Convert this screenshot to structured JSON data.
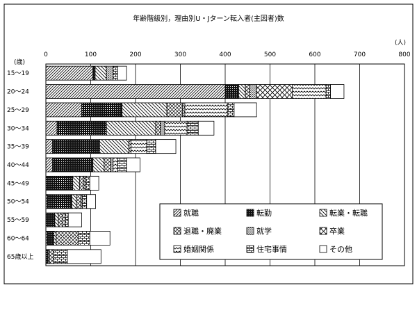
{
  "chart_data": {
    "type": "bar",
    "orientation": "horizontal",
    "stacked": true,
    "title": "年齢階級別，理由別U・Jターン転入者(主因者)数",
    "x_unit": "(人)",
    "y_unit": "(歳)",
    "xlim": [
      0,
      800
    ],
    "x_ticks": [
      "0",
      "100",
      "200",
      "300",
      "400",
      "500",
      "600",
      "700",
      "800"
    ],
    "grid": true,
    "legend_position": "bottom-right",
    "categories": [
      "15～19",
      "20～24",
      "25～29",
      "30～34",
      "35～39",
      "40～44",
      "45～49",
      "50～54",
      "55～59",
      "60～64",
      "65歳以上"
    ],
    "series": [
      {
        "name": "就職",
        "pattern": "diag-fine",
        "values": [
          105,
          400,
          80,
          25,
          15,
          15,
          0,
          3,
          0,
          3,
          0
        ]
      },
      {
        "name": "転勤",
        "pattern": "dots-dense",
        "values": [
          5,
          30,
          90,
          110,
          105,
          90,
          60,
          55,
          20,
          15,
          5
        ]
      },
      {
        "name": "転業・転職",
        "pattern": "diag-back",
        "values": [
          25,
          15,
          100,
          110,
          65,
          25,
          15,
          10,
          8,
          5,
          3
        ]
      },
      {
        "name": "退職・廃業",
        "pattern": "diag-cross",
        "values": [
          0,
          10,
          35,
          10,
          5,
          15,
          10,
          10,
          10,
          50,
          10
        ]
      },
      {
        "name": "就学",
        "pattern": "dots-light",
        "values": [
          15,
          15,
          0,
          10,
          0,
          5,
          0,
          0,
          0,
          0,
          0
        ]
      },
      {
        "name": "卒業",
        "pattern": "cross-hatch",
        "values": [
          0,
          80,
          5,
          0,
          0,
          0,
          0,
          0,
          0,
          0,
          0
        ]
      },
      {
        "name": "婚姻関係",
        "pattern": "zigzag",
        "values": [
          0,
          75,
          95,
          50,
          35,
          10,
          3,
          3,
          5,
          0,
          0
        ]
      },
      {
        "name": "住宅事情",
        "pattern": "brick",
        "values": [
          10,
          10,
          15,
          25,
          20,
          20,
          10,
          10,
          7,
          25,
          30
        ]
      },
      {
        "name": "その他",
        "pattern": "blank",
        "values": [
          20,
          30,
          50,
          35,
          45,
          30,
          20,
          20,
          30,
          45,
          75
        ]
      }
    ]
  }
}
